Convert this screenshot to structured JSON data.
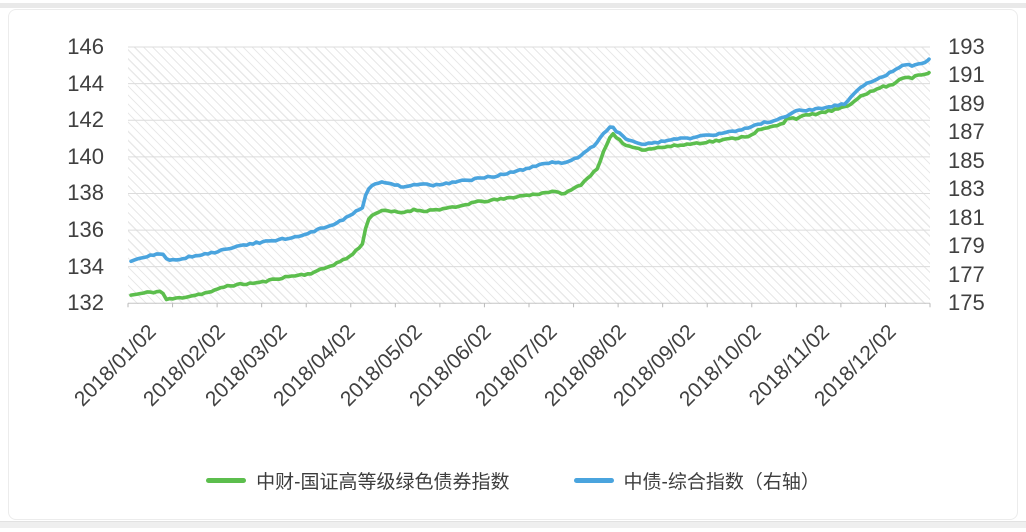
{
  "chart_data": {
    "type": "line",
    "title": "",
    "x_ticks": [
      "2018/01/02",
      "2018/02/02",
      "2018/03/02",
      "2018/04/02",
      "2018/05/02",
      "2018/06/02",
      "2018/07/02",
      "2018/08/02",
      "2018/09/02",
      "2018/10/02",
      "2018/11/02",
      "2018/12/02"
    ],
    "left_axis": {
      "min": 132,
      "max": 146,
      "ticks": [
        146,
        144,
        142,
        140,
        138,
        136,
        134,
        132
      ]
    },
    "right_axis": {
      "min": 175,
      "max": 193,
      "ticks": [
        193,
        191,
        189,
        187,
        185,
        183,
        181,
        179,
        177,
        175
      ]
    },
    "series": [
      {
        "name": "中财-国证高等级绿色债券指数",
        "axis": "left",
        "color": "#5CBE4D",
        "points": [
          [
            "01/02",
            132.45
          ],
          [
            "01/05",
            132.5
          ],
          [
            "01/10",
            132.6
          ],
          [
            "01/16",
            132.65
          ],
          [
            "01/18",
            132.2
          ],
          [
            "01/24",
            132.3
          ],
          [
            "01/31",
            132.45
          ],
          [
            "02/06",
            132.6
          ],
          [
            "02/09",
            132.7
          ],
          [
            "02/14",
            132.95
          ],
          [
            "02/22",
            133.05
          ],
          [
            "03/02",
            133.15
          ],
          [
            "03/09",
            133.35
          ],
          [
            "03/16",
            133.5
          ],
          [
            "03/23",
            133.6
          ],
          [
            "03/29",
            133.85
          ],
          [
            "04/04",
            134.15
          ],
          [
            "04/10",
            134.5
          ],
          [
            "04/13",
            134.8
          ],
          [
            "04/16",
            135.2
          ],
          [
            "04/17",
            135.4
          ],
          [
            "04/18",
            136.2
          ],
          [
            "04/20",
            136.8
          ],
          [
            "04/24",
            137.0
          ],
          [
            "04/27",
            137.05
          ],
          [
            "05/04",
            136.95
          ],
          [
            "05/09",
            137.1
          ],
          [
            "05/15",
            137.05
          ],
          [
            "05/22",
            137.15
          ],
          [
            "05/29",
            137.25
          ],
          [
            "06/05",
            137.5
          ],
          [
            "06/12",
            137.6
          ],
          [
            "06/19",
            137.7
          ],
          [
            "06/26",
            137.85
          ],
          [
            "07/03",
            137.95
          ],
          [
            "07/10",
            138.1
          ],
          [
            "07/17",
            138.0
          ],
          [
            "07/24",
            138.5
          ],
          [
            "07/31",
            139.3
          ],
          [
            "08/03",
            140.2
          ],
          [
            "08/07",
            141.3
          ],
          [
            "08/09",
            141.0
          ],
          [
            "08/14",
            140.6
          ],
          [
            "08/21",
            140.4
          ],
          [
            "08/28",
            140.5
          ],
          [
            "09/04",
            140.6
          ],
          [
            "09/11",
            140.7
          ],
          [
            "09/18",
            140.8
          ],
          [
            "09/25",
            140.9
          ],
          [
            "10/08",
            141.15
          ],
          [
            "10/12",
            141.45
          ],
          [
            "10/17",
            141.6
          ],
          [
            "10/23",
            141.8
          ],
          [
            "10/25",
            142.15
          ],
          [
            "10/29",
            142.1
          ],
          [
            "11/02",
            142.25
          ],
          [
            "11/07",
            142.35
          ],
          [
            "11/13",
            142.5
          ],
          [
            "11/20",
            142.7
          ],
          [
            "11/23",
            142.9
          ],
          [
            "11/27",
            143.35
          ],
          [
            "12/03",
            143.6
          ],
          [
            "12/06",
            143.8
          ],
          [
            "12/11",
            143.9
          ],
          [
            "12/14",
            144.2
          ],
          [
            "12/18",
            144.4
          ],
          [
            "12/20",
            144.3
          ],
          [
            "12/24",
            144.5
          ],
          [
            "12/26",
            144.45
          ],
          [
            "12/28",
            144.6
          ]
        ]
      },
      {
        "name": "中债-综合指数（右轴）",
        "axis": "right",
        "color": "#4AA4DE",
        "points": [
          [
            "01/02",
            177.95
          ],
          [
            "01/05",
            178.1
          ],
          [
            "01/10",
            178.35
          ],
          [
            "01/16",
            178.45
          ],
          [
            "01/19",
            178.05
          ],
          [
            "01/24",
            178.1
          ],
          [
            "01/31",
            178.35
          ],
          [
            "02/06",
            178.5
          ],
          [
            "02/09",
            178.6
          ],
          [
            "02/14",
            178.8
          ],
          [
            "02/22",
            179.1
          ],
          [
            "03/02",
            179.3
          ],
          [
            "03/09",
            179.45
          ],
          [
            "03/16",
            179.6
          ],
          [
            "03/23",
            179.9
          ],
          [
            "03/29",
            180.3
          ],
          [
            "04/04",
            180.6
          ],
          [
            "04/10",
            181.1
          ],
          [
            "04/13",
            181.4
          ],
          [
            "04/16",
            181.6
          ],
          [
            "04/17",
            181.9
          ],
          [
            "04/18",
            182.7
          ],
          [
            "04/20",
            183.2
          ],
          [
            "04/24",
            183.5
          ],
          [
            "04/27",
            183.45
          ],
          [
            "05/04",
            183.2
          ],
          [
            "05/11",
            183.35
          ],
          [
            "05/18",
            183.3
          ],
          [
            "05/25",
            183.45
          ],
          [
            "06/01",
            183.6
          ],
          [
            "06/12",
            183.85
          ],
          [
            "06/19",
            184.05
          ],
          [
            "06/26",
            184.3
          ],
          [
            "07/03",
            184.6
          ],
          [
            "07/10",
            184.9
          ],
          [
            "07/17",
            184.85
          ],
          [
            "07/24",
            185.4
          ],
          [
            "07/31",
            186.2
          ],
          [
            "08/03",
            186.9
          ],
          [
            "08/07",
            187.5
          ],
          [
            "08/09",
            187.1
          ],
          [
            "08/14",
            186.5
          ],
          [
            "08/21",
            186.15
          ],
          [
            "08/28",
            186.3
          ],
          [
            "09/04",
            186.5
          ],
          [
            "09/11",
            186.6
          ],
          [
            "09/18",
            186.8
          ],
          [
            "09/25",
            186.9
          ],
          [
            "10/08",
            187.3
          ],
          [
            "10/12",
            187.6
          ],
          [
            "10/17",
            187.75
          ],
          [
            "10/23",
            188.0
          ],
          [
            "10/29",
            188.5
          ],
          [
            "11/02",
            188.55
          ],
          [
            "11/07",
            188.65
          ],
          [
            "11/13",
            188.8
          ],
          [
            "11/20",
            189.0
          ],
          [
            "11/23",
            189.5
          ],
          [
            "11/27",
            190.2
          ],
          [
            "12/03",
            190.6
          ],
          [
            "12/06",
            190.9
          ],
          [
            "12/11",
            191.2
          ],
          [
            "12/14",
            191.5
          ],
          [
            "12/18",
            191.8
          ],
          [
            "12/20",
            191.6
          ],
          [
            "12/24",
            191.9
          ],
          [
            "12/26",
            191.85
          ],
          [
            "12/28",
            192.15
          ]
        ]
      }
    ],
    "layout": {
      "legend_position": "bottom",
      "grid": "horizontal",
      "plot_hatch": true,
      "x_label_rotation": -45,
      "grid_color": "#dcdcdc",
      "axis_line_color": "#c6c6c6",
      "tick_color": "#b9b9b9",
      "label_color": "#404040",
      "jitter": {
        "seed": 11,
        "left_amp": 0.05,
        "right_amp": 0.065
      }
    }
  }
}
